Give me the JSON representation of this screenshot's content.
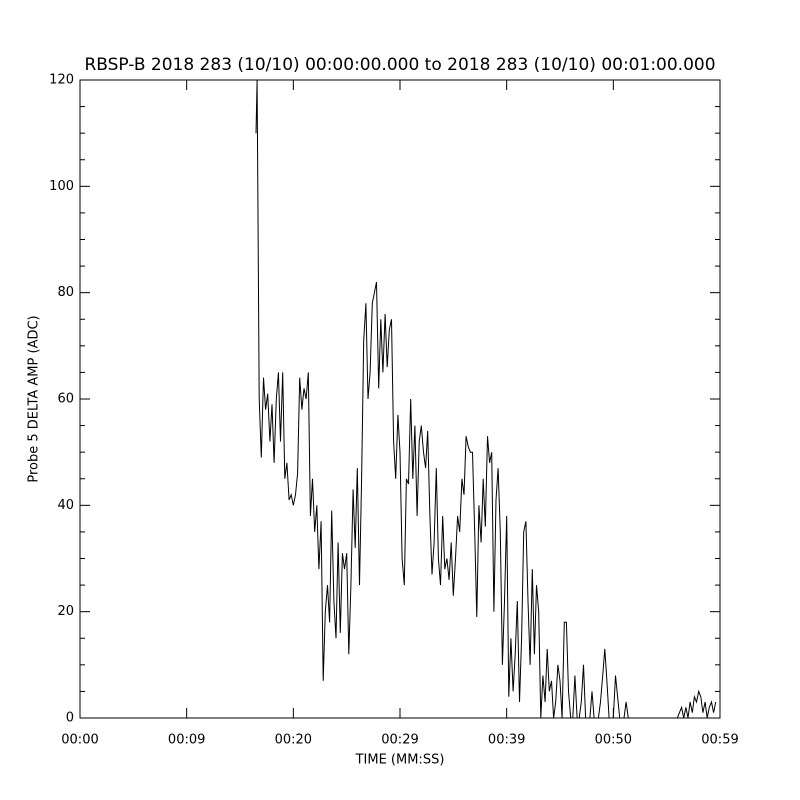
{
  "chart_data": {
    "type": "line",
    "title": "RBSP-B 2018 283 (10/10) 00:00:00.000 to 2018 283 (10/10) 00:01:00.000",
    "x_label": "TIME (MM:SS)",
    "y_label": "Probe 5 DELTA AMP (ADC)",
    "xlim": [
      0,
      60
    ],
    "ylim": [
      0,
      120
    ],
    "xticks": [
      {
        "value": 0,
        "label": "00:00"
      },
      {
        "value": 10,
        "label": "00:09"
      },
      {
        "value": 20,
        "label": "00:20"
      },
      {
        "value": 30,
        "label": "00:29"
      },
      {
        "value": 40,
        "label": "00:39"
      },
      {
        "value": 50,
        "label": "00:50"
      },
      {
        "value": 60,
        "label": "00:59"
      }
    ],
    "yticks": [
      0,
      20,
      40,
      60,
      80,
      100,
      120
    ],
    "grid": false,
    "series": [
      {
        "name": "Probe 5 DELTA AMP",
        "color": "#000000",
        "x": [
          16.5,
          16.6,
          16.8,
          17.0,
          17.2,
          17.4,
          17.6,
          17.8,
          18.0,
          18.2,
          18.4,
          18.6,
          18.8,
          19.0,
          19.2,
          19.4,
          19.6,
          19.8,
          20.0,
          20.2,
          20.4,
          20.6,
          20.8,
          21.0,
          21.2,
          21.4,
          21.6,
          21.8,
          22.0,
          22.2,
          22.4,
          22.6,
          22.8,
          23.0,
          23.2,
          23.4,
          23.6,
          23.8,
          24.0,
          24.2,
          24.4,
          24.6,
          24.8,
          25.0,
          25.2,
          25.4,
          25.6,
          25.8,
          26.0,
          26.2,
          26.4,
          26.6,
          26.8,
          27.0,
          27.2,
          27.4,
          27.6,
          27.8,
          28.0,
          28.2,
          28.4,
          28.6,
          28.8,
          29.0,
          29.2,
          29.4,
          29.6,
          29.8,
          30.0,
          30.2,
          30.4,
          30.6,
          30.8,
          31.0,
          31.2,
          31.4,
          31.6,
          31.8,
          32.0,
          32.2,
          32.4,
          32.6,
          32.8,
          33.0,
          33.2,
          33.4,
          33.6,
          33.8,
          34.0,
          34.2,
          34.4,
          34.6,
          34.8,
          35.0,
          35.2,
          35.4,
          35.6,
          35.8,
          36.0,
          36.2,
          36.4,
          36.6,
          36.8,
          37.0,
          37.2,
          37.4,
          37.6,
          37.8,
          38.0,
          38.2,
          38.4,
          38.6,
          38.8,
          39.0,
          39.2,
          39.4,
          39.6,
          39.8,
          40.0,
          40.2,
          40.4,
          40.6,
          40.8,
          41.0,
          41.2,
          41.4,
          41.6,
          41.8,
          42.0,
          42.2,
          42.4,
          42.6,
          42.8,
          43.0,
          43.2,
          43.4,
          43.6,
          43.8,
          44.0,
          44.2,
          44.4,
          44.6,
          44.8,
          45.0,
          45.2,
          45.4,
          45.6,
          45.8,
          46.0,
          46.2,
          46.4,
          46.6,
          46.8,
          47.0,
          47.2,
          47.4,
          47.6,
          47.8,
          48.0,
          48.2,
          48.4,
          48.6,
          48.8,
          49.0,
          49.2,
          49.4,
          49.6,
          49.8,
          50.0,
          50.2,
          50.4,
          50.6,
          50.8,
          51.0,
          51.2,
          51.4,
          56.0,
          56.4,
          56.6,
          56.8,
          57.0,
          57.2,
          57.4,
          57.6,
          57.8,
          58.0,
          58.2,
          58.4,
          58.6,
          58.8,
          59.0,
          59.2,
          59.4,
          59.6
        ],
        "values": [
          110,
          120,
          60,
          49,
          64,
          58,
          61,
          52,
          59,
          48,
          60,
          65,
          52,
          65,
          45,
          48,
          41,
          42,
          40,
          42,
          46,
          64,
          58,
          62,
          60,
          65,
          38,
          45,
          35,
          40,
          28,
          37,
          7,
          20,
          25,
          18,
          39,
          22,
          15,
          33,
          16,
          31,
          28,
          31,
          12,
          25,
          43,
          32,
          47,
          25,
          45,
          71,
          78,
          60,
          65,
          78,
          80,
          82,
          62,
          75,
          65,
          76,
          66,
          73,
          75,
          52,
          45,
          57,
          50,
          30,
          25,
          45,
          44,
          60,
          45,
          55,
          38,
          52,
          55,
          50,
          47,
          54,
          38,
          27,
          33,
          47,
          30,
          25,
          38,
          28,
          30,
          26,
          33,
          23,
          30,
          38,
          35,
          45,
          42,
          53,
          51,
          50,
          50,
          35,
          19,
          40,
          33,
          45,
          36,
          53,
          48,
          50,
          20,
          41,
          47,
          35,
          10,
          22,
          38,
          4,
          15,
          5,
          12,
          22,
          3,
          15,
          35,
          37,
          22,
          10,
          28,
          12,
          25,
          20,
          0,
          8,
          3,
          13,
          5,
          7,
          0,
          3,
          10,
          7,
          0,
          18,
          18,
          5,
          0,
          0,
          8,
          0,
          0,
          3,
          10,
          0,
          0,
          0,
          5,
          0,
          0,
          0,
          3,
          8,
          13,
          7,
          0,
          0,
          0,
          8,
          4,
          0,
          0,
          0,
          3,
          0,
          0,
          2,
          0,
          2,
          0,
          3,
          1,
          4,
          3,
          5,
          4,
          1,
          3,
          0,
          2,
          3,
          1,
          3
        ]
      }
    ]
  }
}
